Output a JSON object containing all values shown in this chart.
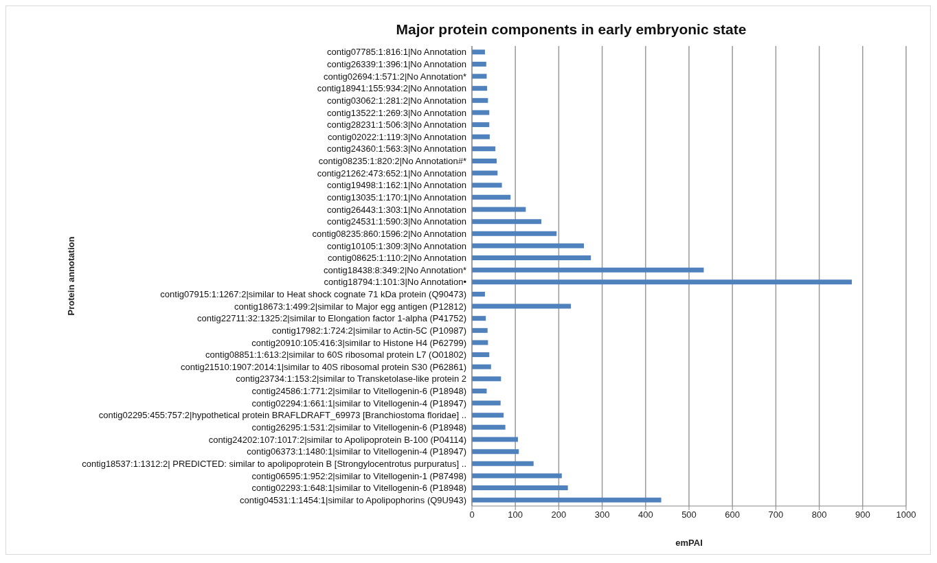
{
  "chart_data": {
    "type": "bar",
    "orientation": "horizontal",
    "title": "Major protein components in early embryonic state",
    "xlabel": "emPAI",
    "ylabel": "Protein annotation",
    "categories": [
      "contig07785:1:816:1|No Annotation",
      "contig26339:1:396:1|No Annotation",
      "contig02694:1:571:2|No Annotation*",
      "contig18941:155:934:2|No Annotation",
      "contig03062:1:281:2|No Annotation",
      "contig13522:1:269:3|No Annotation",
      "contig28231:1:506:3|No Annotation",
      "contig02022:1:119:3|No Annotation",
      "contig24360:1:563:3|No Annotation",
      "contig08235:1:820:2|No Annotation#*",
      "contig21262:473:652:1|No Annotation",
      "contig19498:1:162:1|No Annotation",
      "contig13035:1:170:1|No Annotation",
      "contig26443:1:303:1|No Annotation",
      "contig24531:1:590:3|No Annotation",
      "contig08235:860:1596:2|No Annotation",
      "contig10105:1:309:3|No Annotation",
      "contig08625:1:110:2|No Annotation",
      "contig18438:8:349:2|No Annotation*",
      "contig18794:1:101:3|No Annotation•",
      "contig07915:1:1267:2|similar to Heat shock cognate 71 kDa protein (Q90473)",
      "contig18673:1:499:2|similar to Major egg antigen (P12812)",
      "contig22711:32:1325:2|similar to Elongation factor 1-alpha (P41752)",
      "contig17982:1:724:2|similar to Actin-5C (P10987)",
      "contig20910:105:416:3|similar to Histone H4 (P62799)",
      "contig08851:1:613:2|similar to 60S ribosomal protein L7 (O01802)",
      "contig21510:1907:2014:1|similar to 40S ribosomal protein S30 (P62861)",
      "contig23734:1:153:2|similar to Transketolase-like protein 2",
      "contig24586:1:771:2|similar to Vitellogenin-6 (P18948)",
      "contig02294:1:661:1|similar to Vitellogenin-4 (P18947)",
      "contig02295:455:757:2|hypothetical protein BRAFLDRAFT_69973 [Branchiostoma floridae] ..",
      "contig26295:1:531:2|similar to Vitellogenin-6 (P18948)",
      "contig24202:107:1017:2|similar to Apolipoprotein B-100 (P04114)",
      "contig06373:1:1480:1|similar to Vitellogenin-4 (P18947)",
      "contig18537:1:1312:2| PREDICTED: similar to apolipoprotein B [Strongylocentrotus purpuratus] ..",
      "contig06595:1:952:2|similar to Vitellogenin-1 (P87498)",
      "contig02293:1:648:1|similar to Vitellogenin-6 (P18948)",
      "contig04531:1:1454:1|similar to Apolipophorins (Q9U943)"
    ],
    "values": [
      30,
      33,
      34,
      35,
      37,
      40,
      40,
      41,
      54,
      57,
      59,
      69,
      89,
      124,
      160,
      195,
      258,
      274,
      534,
      875,
      30,
      228,
      32,
      36,
      37,
      40,
      44,
      67,
      34,
      66,
      73,
      77,
      106,
      108,
      142,
      207,
      221,
      436
    ],
    "color": "#4f81bd",
    "xlim": [
      0,
      1000
    ],
    "xticks": [
      0,
      100,
      200,
      300,
      400,
      500,
      600,
      700,
      800,
      900,
      1000
    ],
    "grid": "x"
  }
}
